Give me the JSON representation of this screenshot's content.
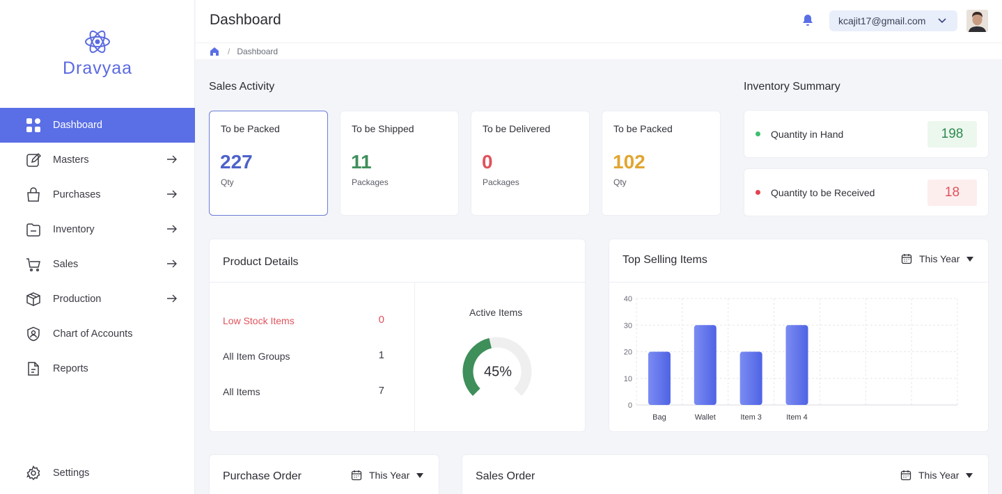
{
  "brand": {
    "name": "Dravyaa"
  },
  "sidebar": {
    "items": [
      {
        "label": "Dashboard",
        "icon": "grid-icon",
        "active": true
      },
      {
        "label": "Masters",
        "icon": "edit-icon",
        "arrow": true
      },
      {
        "label": "Purchases",
        "icon": "bag-icon",
        "arrow": true
      },
      {
        "label": "Inventory",
        "icon": "folder-icon",
        "arrow": true
      },
      {
        "label": "Sales",
        "icon": "cart-icon",
        "arrow": true
      },
      {
        "label": "Production",
        "icon": "box-icon",
        "arrow": true
      },
      {
        "label": "Chart of Accounts",
        "icon": "user-circle-icon"
      },
      {
        "label": "Reports",
        "icon": "document-icon"
      }
    ],
    "settings": {
      "label": "Settings",
      "icon": "gear-icon"
    }
  },
  "header": {
    "title": "Dashboard",
    "user_email": "kcajit17@gmail.com"
  },
  "breadcrumb": {
    "current": "Dashboard"
  },
  "sales_activity": {
    "title": "Sales Activity",
    "cards": [
      {
        "label": "To be Packed",
        "value": "227",
        "unit": "Qty",
        "color": "#4d62c9"
      },
      {
        "label": "To be Shipped",
        "value": "11",
        "unit": "Packages",
        "color": "#3f8f5b"
      },
      {
        "label": "To be Delivered",
        "value": "0",
        "unit": "Packages",
        "color": "#e0525c"
      },
      {
        "label": "To be Packed",
        "value": "102",
        "unit": "Qty",
        "color": "#e2a530"
      }
    ]
  },
  "inventory_summary": {
    "title": "Inventory Summary",
    "rows": [
      {
        "label": "Quantity in Hand",
        "value": "198",
        "dot_color": "#3cbf6e",
        "value_color": "#2e8a4f",
        "bg": "#ecf7ee"
      },
      {
        "label": "Quantity to be Received",
        "value": "18",
        "dot_color": "#e2434f",
        "value_color": "#e0525c",
        "bg": "#fdeeee"
      }
    ]
  },
  "product_details": {
    "title": "Product Details",
    "rows": [
      {
        "label": "Low Stock Items",
        "value": "0",
        "color": "#e0525c"
      },
      {
        "label": "All Item Groups",
        "value": "1",
        "color": "#3a3a44"
      },
      {
        "label": "All Items",
        "value": "7",
        "color": "#3a3a44"
      }
    ],
    "active_items": {
      "title": "Active Items",
      "percent": 45,
      "label": "45%"
    }
  },
  "top_selling": {
    "title": "Top Selling Items",
    "period": "This Year"
  },
  "chart_data": {
    "type": "bar",
    "categories": [
      "Bag",
      "Wallet",
      "Item 3",
      "Item 4"
    ],
    "values": [
      20,
      30,
      20,
      30
    ],
    "yticks": [
      "0",
      "10",
      "20",
      "30",
      "40"
    ],
    "ylim": [
      0,
      40
    ],
    "grid": true,
    "bar_color": "#5a6ee6"
  },
  "purchase_order": {
    "title": "Purchase Order",
    "period": "This Year"
  },
  "sales_order": {
    "title": "Sales Order",
    "period": "This Year"
  }
}
